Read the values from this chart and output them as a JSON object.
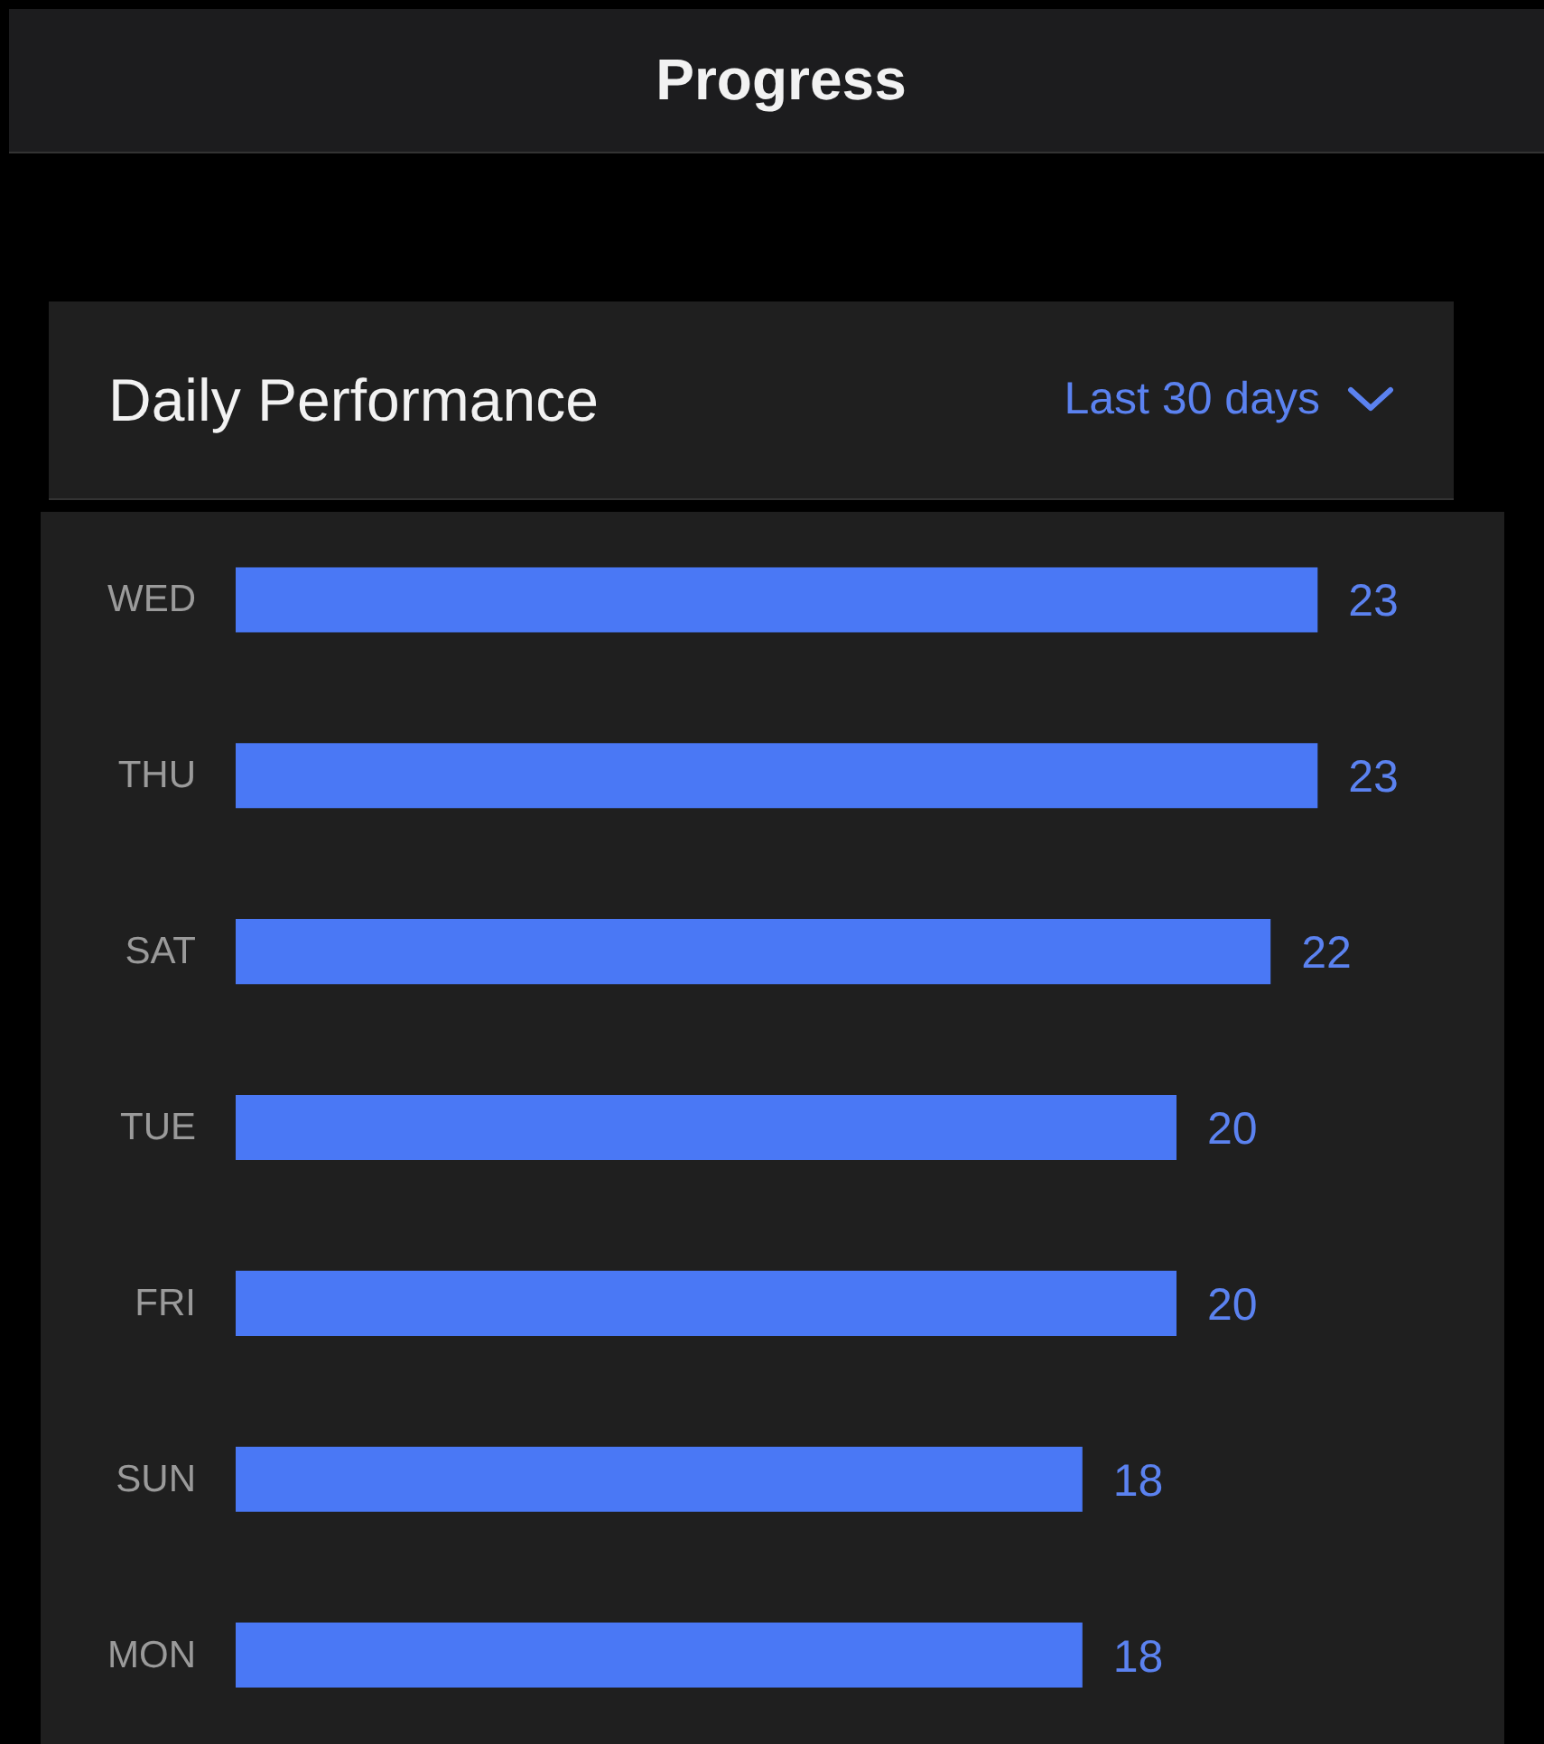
{
  "chart_data": {
    "type": "bar",
    "orientation": "horizontal",
    "title": "Daily Performance",
    "subtitle": "Last 30 days",
    "annotations": [
      "Progress"
    ],
    "categories": [
      "WED",
      "THU",
      "SAT",
      "TUE",
      "FRI",
      "SUN",
      "MON"
    ],
    "values": [
      23,
      23,
      22,
      20,
      20,
      18,
      18
    ],
    "color": "#4a78f5",
    "data_labels": true,
    "tick_labels": "y",
    "grid": false
  }
}
